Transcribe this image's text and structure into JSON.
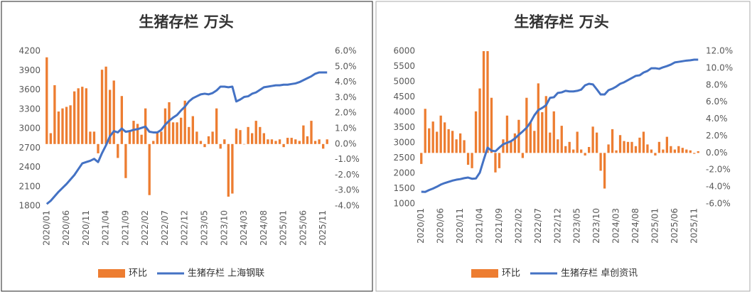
{
  "chart_data": [
    {
      "type": "bar_line",
      "title": "生猪存栏 万头",
      "categories": [
        "2020/01",
        null,
        null,
        null,
        null,
        "2020/06",
        null,
        null,
        null,
        null,
        "2020/11",
        null,
        null,
        null,
        null,
        "2021/04",
        null,
        null,
        null,
        null,
        "2021/09",
        null,
        null,
        null,
        null,
        "2022/02",
        null,
        null,
        null,
        null,
        "2022/07",
        null,
        null,
        null,
        null,
        "2022/12",
        null,
        null,
        null,
        null,
        "2023/05",
        null,
        null,
        null,
        null,
        "2023/10",
        null,
        null,
        null,
        null,
        "2024/03",
        null,
        null,
        null,
        null,
        "2024/08",
        null,
        null,
        null,
        null,
        "2025/01",
        null,
        null,
        null,
        null,
        "2025/06",
        null,
        null,
        null,
        null,
        "2025/11",
        null
      ],
      "series": [
        {
          "name": "环比",
          "type": "bar",
          "axis": "y2",
          "color": "#ed7d31",
          "values": [
            5.6,
            0.7,
            3.8,
            2.1,
            2.3,
            2.4,
            2.5,
            3.4,
            3.6,
            3.7,
            3.6,
            0.8,
            0.8,
            -0.6,
            4.8,
            5.0,
            3.5,
            4.1,
            -0.9,
            3.1,
            -2.2,
            0.8,
            1.5,
            1.3,
            0.6,
            2.3,
            -3.3,
            0.2,
            0.7,
            0.8,
            2.3,
            2.7,
            1.4,
            1.4,
            1.7,
            2.8,
            1.1,
            1.8,
            0.8,
            0.2,
            -0.2,
            0.5,
            0.8,
            2.3,
            -0.3,
            0.3,
            -3.4,
            -3.2,
            1.0,
            0.9,
            0,
            1.1,
            0.7,
            1.5,
            1.1,
            0.7,
            0.3,
            0.3,
            0.2,
            0.3,
            -0.2,
            0.4,
            0.4,
            0.3,
            0.2,
            1.2,
            0.5,
            1.5,
            0.2,
            0.3,
            -0.3,
            0.3
          ]
        },
        {
          "name": "生猪存栏 上海钢联",
          "type": "line",
          "color": "#4472c4",
          "values": [
            1830,
            1880,
            1950,
            2020,
            2080,
            2140,
            2210,
            2280,
            2370,
            2460,
            2480,
            2500,
            2530,
            2480,
            2620,
            2740,
            2880,
            2960,
            2940,
            3000,
            2950,
            2960,
            2980,
            2990,
            3010,
            3030,
            2950,
            2940,
            2940,
            2980,
            3060,
            3120,
            3170,
            3210,
            3280,
            3340,
            3420,
            3470,
            3500,
            3530,
            3540,
            3530,
            3550,
            3590,
            3650,
            3650,
            3640,
            3650,
            3420,
            3450,
            3490,
            3500,
            3540,
            3560,
            3600,
            3640,
            3650,
            3660,
            3670,
            3670,
            3680,
            3680,
            3690,
            3700,
            3720,
            3750,
            3780,
            3810,
            3850,
            3870,
            3870,
            3870
          ]
        }
      ],
      "ylim": [
        1800,
        4200
      ],
      "yticks": [
        1800,
        2100,
        2400,
        2700,
        3000,
        3300,
        3600,
        3900,
        4200
      ],
      "y2lim": [
        -4,
        6
      ],
      "y2ticks": [
        {
          "value": -4,
          "label": "-4.0%"
        },
        {
          "value": -3,
          "label": "-3.0%"
        },
        {
          "value": -2,
          "label": "-2.0%"
        },
        {
          "value": -1,
          "label": "-1.0%"
        },
        {
          "value": 0,
          "label": "0.0%"
        },
        {
          "value": 1,
          "label": "1.0%"
        },
        {
          "value": 2,
          "label": "2.0%"
        },
        {
          "value": 3,
          "label": "3.0%"
        },
        {
          "value": 4,
          "label": "4.0%"
        },
        {
          "value": 5,
          "label": "5.0%"
        },
        {
          "value": 6,
          "label": "6.0%"
        }
      ],
      "legend": "bottom"
    },
    {
      "type": "bar_line",
      "title": "生猪存栏 万头",
      "categories": [
        "2020/01",
        null,
        null,
        null,
        null,
        "2020/06",
        null,
        null,
        null,
        null,
        "2020/11",
        null,
        null,
        null,
        null,
        "2021/04",
        null,
        null,
        null,
        null,
        "2021/09",
        null,
        null,
        null,
        null,
        "2022/02",
        null,
        null,
        null,
        null,
        "2022/07",
        null,
        null,
        null,
        null,
        "2022/12",
        null,
        null,
        null,
        null,
        "2023/05",
        null,
        null,
        null,
        null,
        "2023/10",
        null,
        null,
        null,
        null,
        "2024/03",
        null,
        null,
        null,
        null,
        "2024/08",
        null,
        null,
        null,
        null,
        "2025/01",
        null,
        null,
        null,
        null,
        "2025/06",
        null,
        null,
        null,
        null,
        "2025/11",
        null
      ],
      "series": [
        {
          "name": "环比",
          "type": "bar",
          "axis": "y2",
          "color": "#ed7d31",
          "values": [
            -1.3,
            5.2,
            2.9,
            3.7,
            2.5,
            4.4,
            3.6,
            2.8,
            2.6,
            1.6,
            2.3,
            1.5,
            -1.4,
            -1.8,
            4.9,
            7.6,
            12.0,
            12.0,
            6.5,
            -2.3,
            -1.8,
            1.6,
            4.4,
            1.3,
            2.3,
            3.9,
            -0.6,
            6.5,
            3.6,
            2.6,
            8.2,
            4.8,
            6.7,
            2.4,
            4.9,
            1.6,
            3.2,
            0.8,
            1.3,
            0.4,
            2.5,
            0.4,
            -0.3,
            0.7,
            3.1,
            2.4,
            -2.1,
            -4.2,
            1.0,
            2.8,
            0.3,
            2.1,
            1.4,
            1.3,
            1.3,
            0.8,
            1.8,
            2.5,
            1.0,
            0.4,
            -0.3,
            1.3,
            0.4,
            1.9,
            0.8,
            0.4,
            0.8,
            0.6,
            0.4,
            0.3,
            -0.1,
            0.2
          ]
        },
        {
          "name": "生猪存栏 卓创资讯",
          "type": "line",
          "color": "#4472c4",
          "values": [
            1395,
            1390,
            1450,
            1500,
            1560,
            1630,
            1680,
            1720,
            1760,
            1790,
            1810,
            1840,
            1860,
            1820,
            1830,
            2020,
            2440,
            2840,
            2740,
            2720,
            2840,
            2950,
            3000,
            3050,
            3140,
            3260,
            3370,
            3490,
            3670,
            3900,
            4070,
            4140,
            4230,
            4470,
            4490,
            4630,
            4650,
            4700,
            4680,
            4680,
            4700,
            4740,
            4880,
            4930,
            4910,
            4750,
            4580,
            4580,
            4720,
            4770,
            4840,
            4930,
            4980,
            5050,
            5120,
            5190,
            5210,
            5300,
            5350,
            5440,
            5440,
            5420,
            5470,
            5510,
            5560,
            5630,
            5650,
            5670,
            5690,
            5700,
            5720,
            5720
          ]
        }
      ],
      "ylim": [
        1000,
        6000
      ],
      "yticks": [
        1000,
        1500,
        2000,
        2500,
        3000,
        3500,
        4000,
        4500,
        5000,
        5500,
        6000
      ],
      "y2lim": [
        -6,
        12
      ],
      "y2ticks": [
        {
          "value": -6,
          "label": "-6.0%"
        },
        {
          "value": -4,
          "label": "-4.0%"
        },
        {
          "value": -2,
          "label": "-2.0%"
        },
        {
          "value": 0,
          "label": "0.0%"
        },
        {
          "value": 2,
          "label": "2.0%"
        },
        {
          "value": 4,
          "label": "4.0%"
        },
        {
          "value": 6,
          "label": "6.0%"
        },
        {
          "value": 8,
          "label": "8.0%"
        },
        {
          "value": 10,
          "label": "10.0%"
        },
        {
          "value": 12,
          "label": "12.0%"
        }
      ],
      "legend": "bottom"
    }
  ]
}
